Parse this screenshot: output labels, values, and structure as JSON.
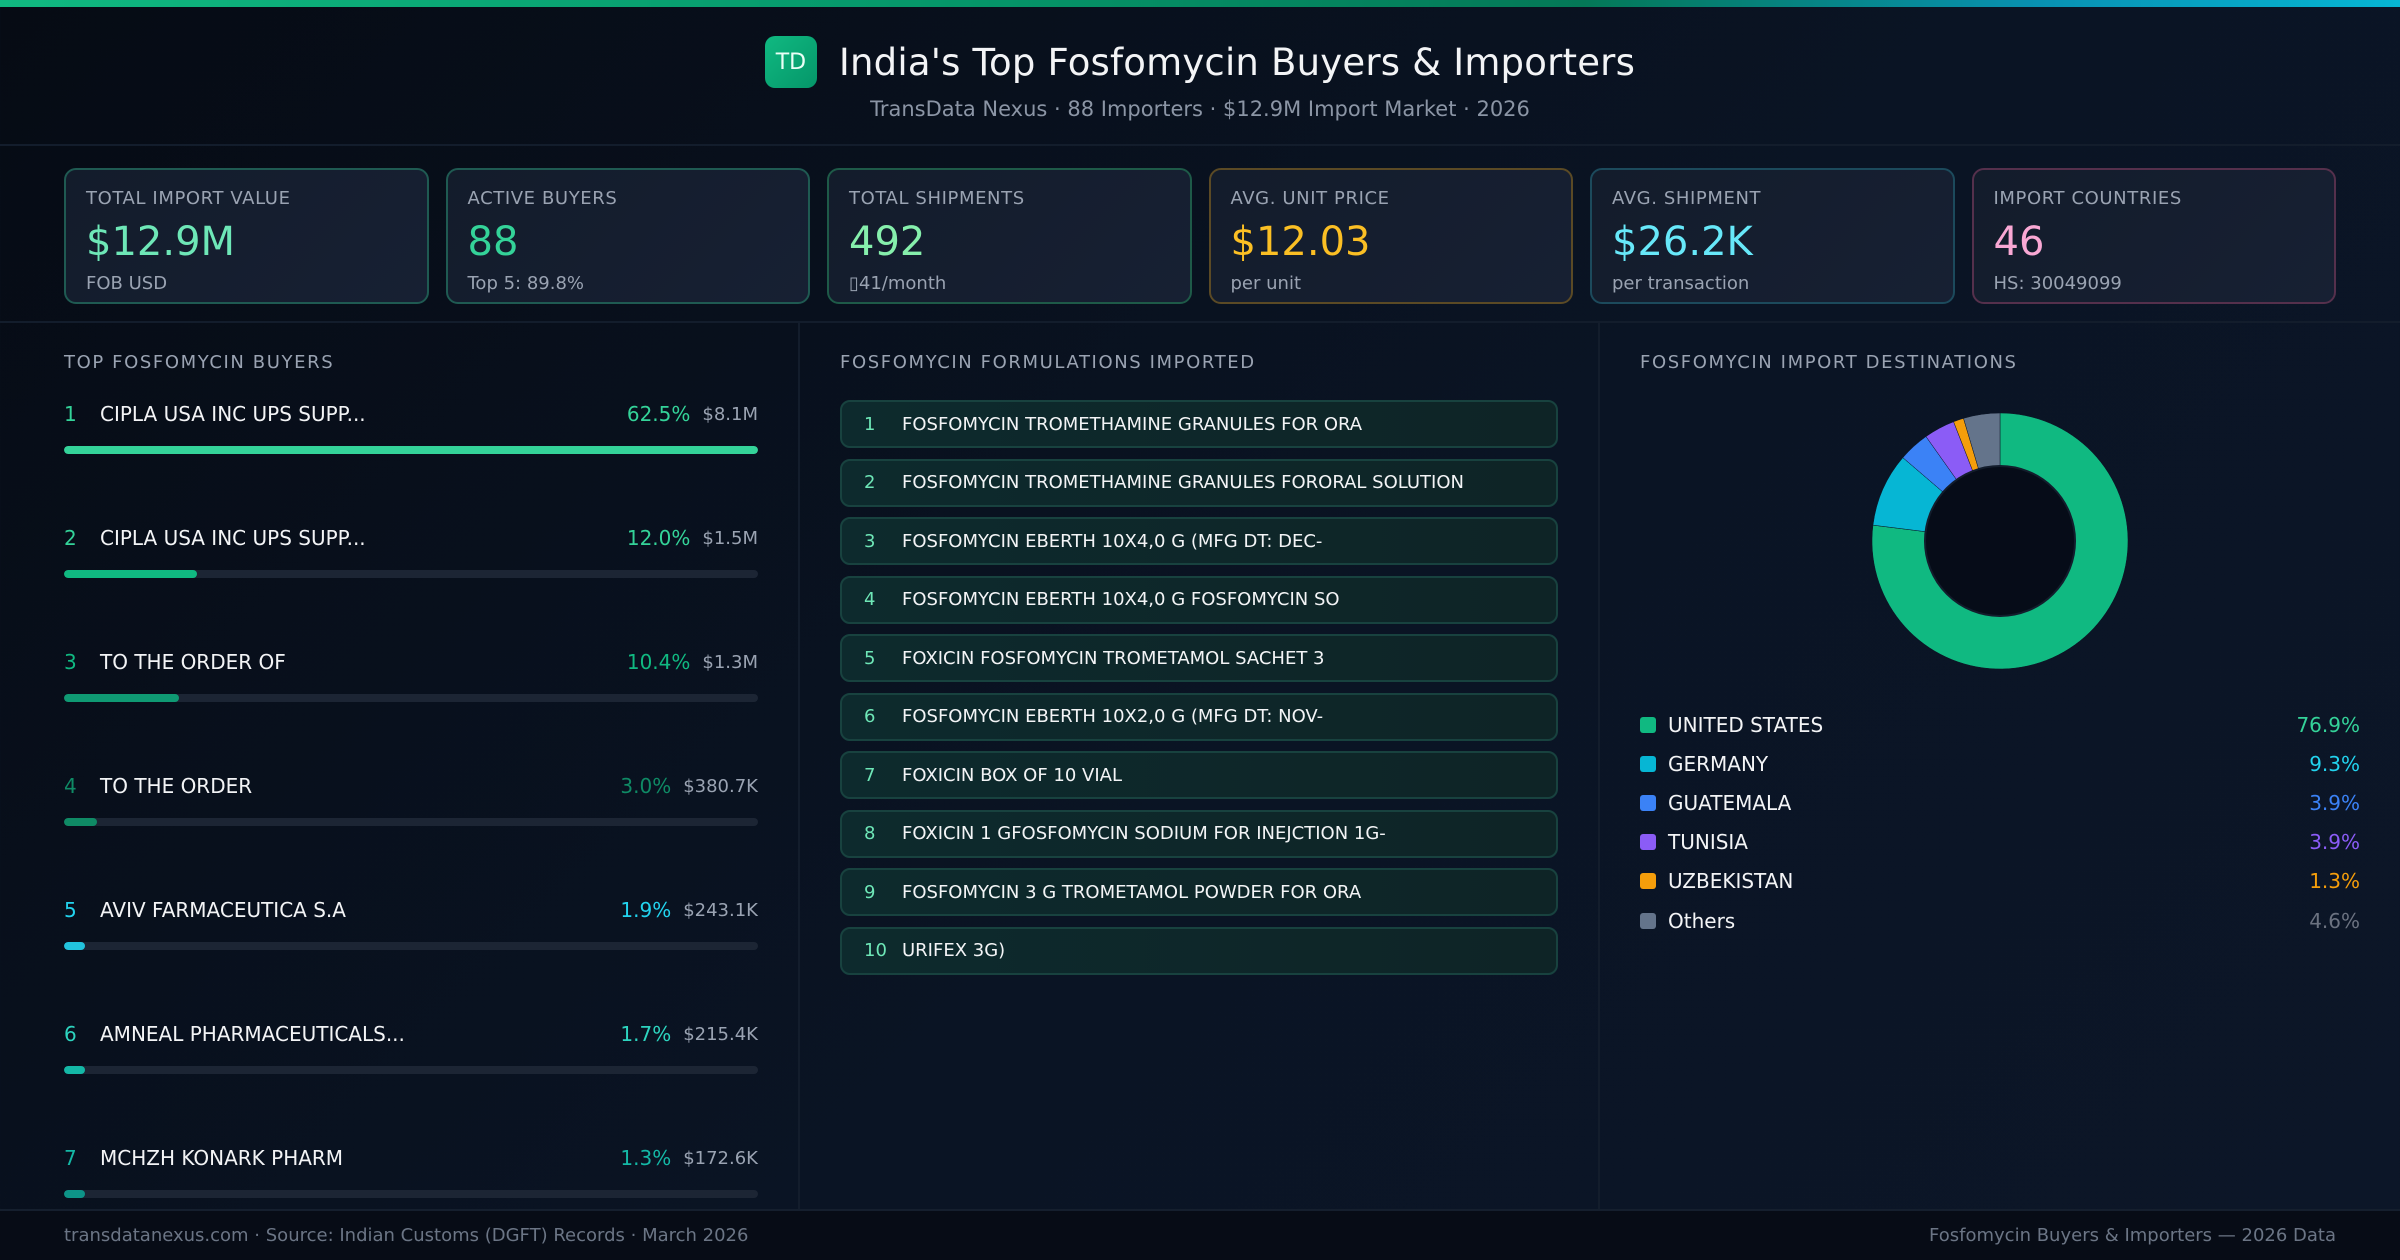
{
  "header": {
    "logo_text": "TD",
    "title": "India's Top Fosfomycin Buyers & Importers",
    "subtitle": "TransData Nexus · 88 Importers · $12.9M Import Market · 2026"
  },
  "kpis": [
    {
      "label": "TOTAL IMPORT VALUE",
      "value": "$12.9M",
      "sub": "FOB USD",
      "color": "#6ee7b7"
    },
    {
      "label": "ACTIVE BUYERS",
      "value": "88",
      "sub": "Top 5: 89.8%",
      "color": "#34d399"
    },
    {
      "label": "TOTAL SHIPMENTS",
      "value": "492",
      "sub": "▯41/month",
      "color": "#86efac"
    },
    {
      "label": "AVG. UNIT PRICE",
      "value": "$12.03",
      "sub": "per unit",
      "color": "#fbbf24"
    },
    {
      "label": "AVG. SHIPMENT",
      "value": "$26.2K",
      "sub": "per transaction",
      "color": "#67e8f9"
    },
    {
      "label": "IMPORT COUNTRIES",
      "value": "46",
      "sub": "HS: 30049099",
      "color": "#f9a8d4"
    }
  ],
  "buyers": {
    "title": "TOP FOSFOMYCIN BUYERS",
    "items": [
      {
        "rank": "1",
        "name": "CIPLA USA INC UPS SUPP...",
        "pct": "62.5%",
        "value": "$8.1M",
        "share": 100,
        "color": "#34d399",
        "bar": "#34d399"
      },
      {
        "rank": "2",
        "name": "CIPLA USA INC UPS SUPP...",
        "pct": "12.0%",
        "value": "$1.5M",
        "share": 19.2,
        "color": "#34d399",
        "bar": "#10b981"
      },
      {
        "rank": "3",
        "name": "TO THE ORDER OF",
        "pct": "10.4%",
        "value": "$1.3M",
        "share": 16.6,
        "color": "#10b981",
        "bar": "#0f9a73"
      },
      {
        "rank": "4",
        "name": "TO THE ORDER",
        "pct": "3.0%",
        "value": "$380.7K",
        "share": 4.8,
        "color": "#0f8a65",
        "bar": "#0f8a65"
      },
      {
        "rank": "5",
        "name": "AVIV FARMACEUTICA S.A",
        "pct": "1.9%",
        "value": "$243.1K",
        "share": 3.0,
        "color": "#22d3ee",
        "bar": "#22c3dd"
      },
      {
        "rank": "6",
        "name": "AMNEAL PHARMACEUTICALS...",
        "pct": "1.7%",
        "value": "$215.4K",
        "share": 3.0,
        "color": "#2dd4bf",
        "bar": "#14b8a6"
      },
      {
        "rank": "7",
        "name": "MCHZH KONARK PHARM",
        "pct": "1.3%",
        "value": "$172.6K",
        "share": 3.0,
        "color": "#14b8a6",
        "bar": "#0d9488"
      }
    ]
  },
  "formulations": {
    "title": "FOSFOMYCIN FORMULATIONS IMPORTED",
    "items": [
      {
        "rank": "1",
        "name": "FOSFOMYCIN TROMETHAMINE GRANULES FOR ORA"
      },
      {
        "rank": "2",
        "name": "FOSFOMYCIN TROMETHAMINE GRANULES FORORAL SOLUTION"
      },
      {
        "rank": "3",
        "name": "FOSFOMYCIN EBERTH 10X4,0 G (MFG DT: DEC-"
      },
      {
        "rank": "4",
        "name": "FOSFOMYCIN EBERTH 10X4,0 G FOSFOMYCIN SO"
      },
      {
        "rank": "5",
        "name": "FOXICIN FOSFOMYCIN TROMETAMOL SACHET 3"
      },
      {
        "rank": "6",
        "name": "FOSFOMYCIN EBERTH 10X2,0 G (MFG DT: NOV-"
      },
      {
        "rank": "7",
        "name": "FOXICIN BOX OF 10 VIAL"
      },
      {
        "rank": "8",
        "name": "FOXICIN 1 GFOSFOMYCIN SODIUM FOR INEJCTION 1G-"
      },
      {
        "rank": "9",
        "name": "FOSFOMYCIN 3 G TROMETAMOL POWDER FOR ORA"
      },
      {
        "rank": "10",
        "name": "URIFEX 3G)"
      }
    ]
  },
  "destinations": {
    "title": "FOSFOMYCIN IMPORT DESTINATIONS",
    "items": [
      {
        "name": "UNITED STATES",
        "pct": "76.9%",
        "value": 76.9,
        "color": "#10b981",
        "text_color": "#34d399"
      },
      {
        "name": "GERMANY",
        "pct": "9.3%",
        "value": 9.3,
        "color": "#06b6d4",
        "text_color": "#22d3ee"
      },
      {
        "name": "GUATEMALA",
        "pct": "3.9%",
        "value": 3.9,
        "color": "#3b82f6",
        "text_color": "#3b82f6"
      },
      {
        "name": "TUNISIA",
        "pct": "3.9%",
        "value": 3.9,
        "color": "#8b5cf6",
        "text_color": "#8b5cf6"
      },
      {
        "name": "UZBEKISTAN",
        "pct": "1.3%",
        "value": 1.3,
        "color": "#f59e0b",
        "text_color": "#f59e0b"
      },
      {
        "name": "Others",
        "pct": "4.6%",
        "value": 4.6,
        "color": "#64748b",
        "text_color": "#6b7280"
      }
    ]
  },
  "chart_data": {
    "type": "pie",
    "title": "FOSFOMYCIN IMPORT DESTINATIONS",
    "categories": [
      "UNITED STATES",
      "GERMANY",
      "GUATEMALA",
      "TUNISIA",
      "UZBEKISTAN",
      "Others"
    ],
    "values": [
      76.9,
      9.3,
      3.9,
      3.9,
      1.3,
      4.6
    ],
    "colors": [
      "#10b981",
      "#06b6d4",
      "#3b82f6",
      "#8b5cf6",
      "#f59e0b",
      "#64748b"
    ],
    "donut": true,
    "legend_position": "bottom"
  },
  "footer": {
    "left": "transdatanexus.com · Source: Indian Customs (DGFT) Records · March 2026",
    "right": "Fosfomycin Buyers & Importers — 2026 Data"
  }
}
